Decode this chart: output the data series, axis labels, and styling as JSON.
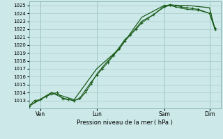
{
  "xlabel": "Pression niveau de la mer ( hPa )",
  "bg_color": "#cce8e8",
  "grid_color": "#aacccc",
  "line_color": "#1a5c1a",
  "ylim": [
    1012.0,
    1025.5
  ],
  "yticks": [
    1013,
    1014,
    1015,
    1016,
    1017,
    1018,
    1019,
    1020,
    1021,
    1022,
    1023,
    1024,
    1025
  ],
  "day_labels": [
    "Ven",
    "Lun",
    "Sam",
    "Dim"
  ],
  "day_positions": [
    0.5,
    3.0,
    6.0,
    8.0
  ],
  "xmin": 0.0,
  "xmax": 8.5,
  "series1_x": [
    0.0,
    0.25,
    0.5,
    0.75,
    1.0,
    1.25,
    1.5,
    1.75,
    2.0,
    2.25,
    2.5,
    2.75,
    3.0,
    3.25,
    3.5,
    3.75,
    4.0,
    4.25,
    4.5,
    4.75,
    5.0,
    5.25,
    5.5,
    6.0,
    6.25,
    6.5,
    6.75,
    7.0,
    7.25,
    7.5,
    8.0,
    8.25
  ],
  "series1_y": [
    1012.3,
    1013.0,
    1013.1,
    1013.5,
    1013.8,
    1014.0,
    1013.2,
    1013.1,
    1013.0,
    1013.3,
    1014.3,
    1015.3,
    1016.2,
    1017.0,
    1017.8,
    1018.7,
    1019.5,
    1020.5,
    1021.3,
    1022.0,
    1022.8,
    1023.3,
    1023.8,
    1024.9,
    1025.1,
    1025.0,
    1024.8,
    1024.7,
    1024.6,
    1024.5,
    1024.0,
    1022.1
  ],
  "series2_x": [
    0.0,
    0.5,
    1.0,
    1.5,
    2.0,
    2.25,
    2.5,
    2.75,
    3.0,
    3.25,
    3.5,
    3.75,
    4.0,
    4.25,
    4.5,
    5.0,
    5.5,
    6.0,
    6.25,
    6.5,
    7.0,
    7.5,
    8.0,
    8.25
  ],
  "series2_y": [
    1012.3,
    1013.1,
    1014.0,
    1013.3,
    1013.0,
    1013.2,
    1014.0,
    1015.1,
    1016.3,
    1017.2,
    1018.0,
    1018.8,
    1019.7,
    1020.7,
    1021.3,
    1023.0,
    1023.8,
    1024.8,
    1025.0,
    1024.8,
    1024.5,
    1024.4,
    1024.0,
    1021.9
  ],
  "series3_x": [
    0.0,
    1.0,
    2.0,
    3.0,
    4.0,
    5.0,
    6.0,
    7.0,
    8.0,
    8.25
  ],
  "series3_y": [
    1012.3,
    1014.0,
    1013.1,
    1017.0,
    1019.5,
    1023.5,
    1025.0,
    1025.0,
    1024.7,
    1021.9
  ]
}
